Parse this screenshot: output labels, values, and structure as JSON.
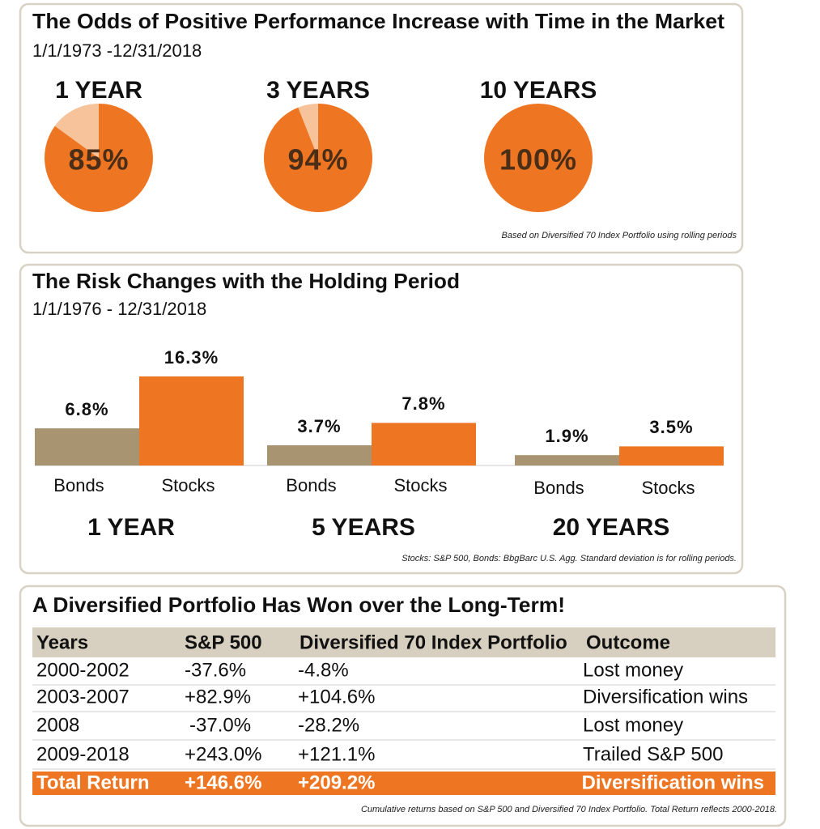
{
  "chart_data": [
    {
      "type": "pie",
      "title": "The Odds of Positive Performance Increase with Time in the Market",
      "subtitle": "1/1/1973 -12/31/2018",
      "note": "Based on Diversified 70 Index Portfolio using rolling periods",
      "categories": [
        "1 YEAR",
        "3 YEARS",
        "10 YEARS"
      ],
      "values": [
        85,
        94,
        100
      ],
      "value_labels": [
        "85%",
        "94%",
        "100%"
      ],
      "color": "#ee7623",
      "rest_color": "#f7c39a"
    },
    {
      "type": "bar",
      "title": "The Risk Changes with the Holding Period",
      "subtitle": "1/1/1976 - 12/31/2018",
      "note": "Stocks: S&P 500, Bonds: BbgBarc U.S. Agg. Standard deviation is for rolling periods.",
      "categories": [
        "1 YEAR",
        "5 YEARS",
        "20 YEARS"
      ],
      "series": [
        {
          "name": "Bonds",
          "color": "#a89470",
          "values": [
            6.8,
            3.7,
            1.9
          ],
          "value_labels": [
            "6.8%",
            "3.7%",
            "1.9%"
          ]
        },
        {
          "name": "Stocks",
          "color": "#ee7623",
          "values": [
            16.3,
            7.8,
            3.5
          ],
          "value_labels": [
            "16.3%",
            "7.8%",
            "3.5%"
          ]
        }
      ]
    }
  ],
  "table": {
    "title": "A Diversified Portfolio Has Won over the Long-Term!",
    "columns": [
      "Years",
      "S&P 500",
      "Diversified 70 Index Portfolio",
      "Outcome"
    ],
    "rows": [
      [
        "2000-2002",
        "-37.6%",
        "-4.8%",
        "Lost money"
      ],
      [
        "2003-2007",
        "+82.9%",
        "+104.6%",
        "Diversification wins"
      ],
      [
        "2008",
        "-37.0%",
        "-28.2%",
        "Lost money"
      ],
      [
        "2009-2018",
        "+243.0%",
        "+121.1%",
        "Trailed S&P 500"
      ]
    ],
    "total": [
      "Total Return",
      "+146.6%",
      "+209.2%",
      "Diversification wins"
    ],
    "note": "Cumulative returns based on S&P 500 and Diversified 70 Index Portfolio. Total Return reflects 2000-2018."
  }
}
